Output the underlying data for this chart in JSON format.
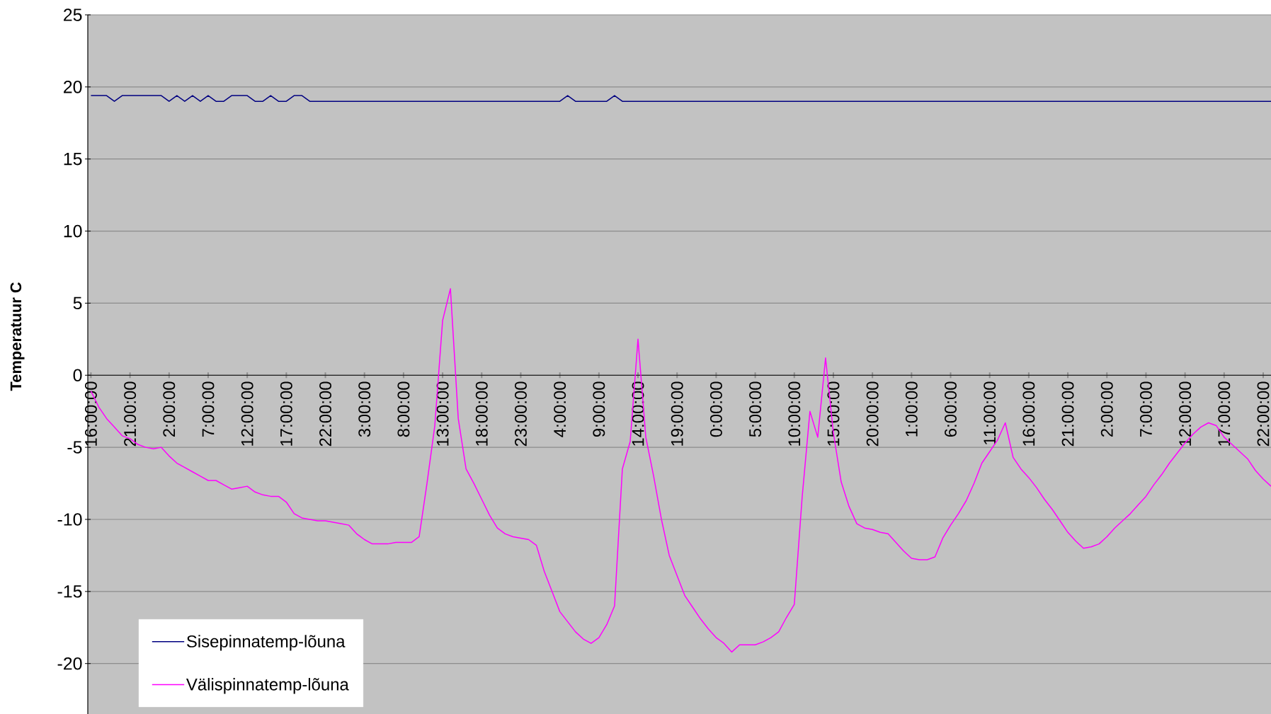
{
  "chart_data": {
    "type": "line",
    "ylabel": "Temperatuur C",
    "categories": [
      "16:00:00",
      null,
      null,
      null,
      null,
      "21:00:00",
      null,
      null,
      null,
      null,
      "2:00:00",
      null,
      null,
      null,
      null,
      "7:00:00",
      null,
      null,
      null,
      null,
      "12:00:00",
      null,
      null,
      null,
      null,
      "17:00:00",
      null,
      null,
      null,
      null,
      "22:00:00",
      null,
      null,
      null,
      null,
      "3:00:00",
      null,
      null,
      null,
      null,
      "8:00:00",
      null,
      null,
      null,
      null,
      "13:00:00",
      null,
      null,
      null,
      null,
      "18:00:00",
      null,
      null,
      null,
      null,
      "23:00:00",
      null,
      null,
      null,
      null,
      "4:00:00",
      null,
      null,
      null,
      null,
      "9:00:00",
      null,
      null,
      null,
      null,
      "14:00:00",
      null,
      null,
      null,
      null,
      "19:00:00",
      null,
      null,
      null,
      null,
      "0:00:00",
      null,
      null,
      null,
      null,
      "5:00:00",
      null,
      null,
      null,
      null,
      "10:00:00",
      null,
      null,
      null,
      null,
      "15:00:00",
      null,
      null,
      null,
      null,
      "20:00:00",
      null,
      null,
      null,
      null,
      "1:00:00",
      null,
      null,
      null,
      null,
      "6:00:00",
      null,
      null,
      null,
      null,
      "11:00:00",
      null,
      null,
      null,
      null,
      "16:00:00",
      null,
      null,
      null,
      null,
      "21:00:00",
      null,
      null,
      null,
      null,
      "2:00:00",
      null,
      null,
      null,
      null,
      "7:00:00",
      null,
      null,
      null,
      null,
      "12:00:00",
      null,
      null,
      null,
      null,
      "17:00:00",
      null,
      null,
      null,
      null,
      "22:00:00",
      null
    ],
    "ylim": [
      -23.5,
      25
    ],
    "yticks": [
      -20,
      -15,
      -10,
      -5,
      0,
      5,
      10,
      15,
      20,
      25
    ],
    "grid": "y",
    "legend": "bottom left",
    "line_style": "solid",
    "series": [
      {
        "name": "Sisepinnatemp-lõuna",
        "color": "#000080",
        "values": [
          19.4,
          19.4,
          19.4,
          19.0,
          19.4,
          19.4,
          19.4,
          19.4,
          19.4,
          19.4,
          19.0,
          19.4,
          19.0,
          19.4,
          19.0,
          19.4,
          19.0,
          19.0,
          19.4,
          19.4,
          19.4,
          19.0,
          19.0,
          19.4,
          19.0,
          19.0,
          19.4,
          19.4,
          19.0,
          19.0,
          19.0,
          19.0,
          19.0,
          19.0,
          19.0,
          19.0,
          19.0,
          19.0,
          19.0,
          19.0,
          19.0,
          19.0,
          19.0,
          19.0,
          19.0,
          19.0,
          19.0,
          19.0,
          19.0,
          19.0,
          19.0,
          19.0,
          19.0,
          19.0,
          19.0,
          19.0,
          19.0,
          19.0,
          19.0,
          19.0,
          19.0,
          19.4,
          19.0,
          19.0,
          19.0,
          19.0,
          19.0,
          19.4,
          19.0,
          19.0,
          19.0,
          19.0,
          19.0,
          19.0,
          19.0,
          19.0,
          19.0,
          19.0,
          19.0,
          19.0,
          19.0,
          19.0,
          19.0,
          19.0,
          19.0,
          19.0,
          19.0,
          19.0,
          19.0,
          19.0,
          19.0,
          19.0,
          19.0,
          19.0,
          19.0,
          19.0,
          19.0,
          19.0,
          19.0,
          19.0,
          19.0,
          19.0,
          19.0,
          19.0,
          19.0,
          19.0,
          19.0,
          19.0,
          19.0,
          19.0,
          19.0,
          19.0,
          19.0,
          19.0,
          19.0,
          19.0,
          19.0,
          19.0,
          19.0,
          19.0,
          19.0,
          19.0,
          19.0,
          19.0,
          19.0,
          19.0,
          19.0,
          19.0,
          19.0,
          19.0,
          19.0,
          19.0,
          19.0,
          19.0,
          19.0,
          19.0,
          19.0,
          19.0,
          19.0,
          19.0,
          19.0,
          19.0,
          19.0,
          19.0,
          19.0,
          19.0,
          19.0,
          19.0,
          19.0,
          19.0,
          19.0,
          19.0
        ]
      },
      {
        "name": "Välispinnatemp-lõuna",
        "color": "#ff00ff",
        "values": [
          -1.1,
          -2.2,
          -3.0,
          -3.6,
          -4.2,
          -4.4,
          -4.8,
          -5.0,
          -5.1,
          -5.0,
          -5.6,
          -6.1,
          -6.4,
          -6.7,
          -7.0,
          -7.3,
          -7.3,
          -7.6,
          -7.9,
          -7.8,
          -7.7,
          -8.1,
          -8.3,
          -8.4,
          -8.4,
          -8.8,
          -9.6,
          -9.9,
          -10.0,
          -10.1,
          -10.1,
          -10.2,
          -10.3,
          -10.4,
          -11.0,
          -11.4,
          -11.7,
          -11.7,
          -11.7,
          -11.6,
          -11.6,
          -11.6,
          -11.2,
          -7.5,
          -3.5,
          3.8,
          6.0,
          -3.0,
          -6.5,
          -7.5,
          -8.6,
          -9.7,
          -10.6,
          -11.0,
          -11.2,
          -11.3,
          -11.4,
          -11.8,
          -13.6,
          -15.0,
          -16.4,
          -17.1,
          -17.8,
          -18.3,
          -18.6,
          -18.2,
          -17.3,
          -16.0,
          -6.5,
          -4.6,
          2.5,
          -4.3,
          -7.0,
          -10.0,
          -12.5,
          -13.9,
          -15.3,
          -16.1,
          -16.9,
          -17.6,
          -18.2,
          -18.6,
          -19.2,
          -18.7,
          -18.7,
          -18.7,
          -18.5,
          -18.2,
          -17.8,
          -16.8,
          -15.9,
          -8.5,
          -2.5,
          -4.3,
          1.2,
          -4.0,
          -7.4,
          -9.1,
          -10.3,
          -10.6,
          -10.7,
          -10.9,
          -11.0,
          -11.6,
          -12.2,
          -12.7,
          -12.8,
          -12.8,
          -12.6,
          -11.3,
          -10.4,
          -9.6,
          -8.7,
          -7.5,
          -6.1,
          -5.3,
          -4.5,
          -3.3,
          -5.7,
          -6.5,
          -7.1,
          -7.8,
          -8.6,
          -9.3,
          -10.1,
          -10.9,
          -11.5,
          -12.0,
          -11.9,
          -11.7,
          -11.2,
          -10.6,
          -10.1,
          -9.6,
          -9.0,
          -8.4,
          -7.6,
          -6.9,
          -6.1,
          -5.4,
          -4.7,
          -4.1,
          -3.6,
          -3.3,
          -3.5,
          -4.3,
          -4.8,
          -5.3,
          -5.8,
          -6.6,
          -7.2,
          -7.7
        ]
      }
    ]
  }
}
